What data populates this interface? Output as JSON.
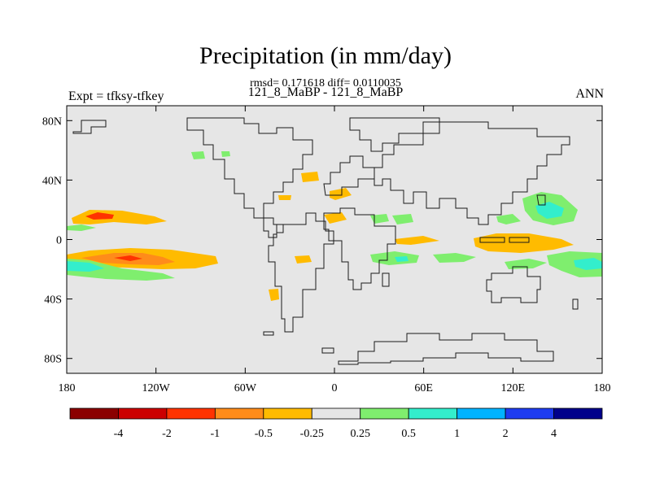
{
  "chart_data": {
    "type": "heatmap",
    "title": "Precipitation (in mm/day)",
    "subtitle_top": "rmsd= 0.171618 diff= 0.0110035",
    "subtitle_bottom": "121_8_MaBP - 121_8_MaBP",
    "left_label": "Expt = tfksy-tfkey",
    "right_label": "ANN",
    "x_ticks": [
      "180",
      "120W",
      "60W",
      "0",
      "60E",
      "120E",
      "180"
    ],
    "x_values": [
      -180,
      -120,
      -60,
      0,
      60,
      120,
      180
    ],
    "y_ticks": [
      "80N",
      "40N",
      "0",
      "40S",
      "80S"
    ],
    "y_values": [
      80,
      40,
      0,
      -40,
      -80
    ],
    "xlim": [
      -180,
      180
    ],
    "ylim": [
      -90,
      90
    ],
    "colorbar": {
      "labels": [
        "-4",
        "-2",
        "-1",
        "-0.5",
        "-0.25",
        "0.25",
        "0.5",
        "1",
        "2",
        "4"
      ],
      "colors": [
        "#8b0000",
        "#cc0000",
        "#ff3300",
        "#ff8c1a",
        "#ffbb00",
        "#e6e6e6",
        "#7fee6e",
        "#33eecc",
        "#00b3ff",
        "#1e3cf0",
        "#00008b"
      ]
    },
    "background_color": "#e6e6e6"
  }
}
